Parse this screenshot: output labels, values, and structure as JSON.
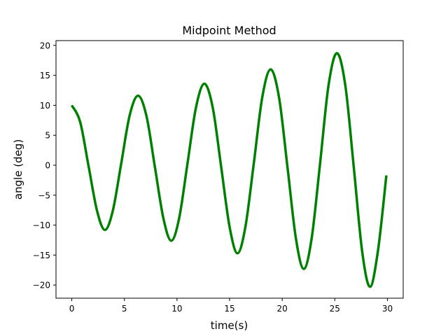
{
  "chart_data": {
    "type": "line",
    "title": "Midpoint Method",
    "xlabel": "time(s)",
    "ylabel": "angle (deg)",
    "xlim": [
      -1.5,
      31.5
    ],
    "ylim": [
      -22.2,
      20.8
    ],
    "xticks": [
      0,
      5,
      10,
      15,
      20,
      25,
      30
    ],
    "yticks": [
      -20,
      -15,
      -10,
      -5,
      0,
      5,
      10,
      15,
      20
    ],
    "xtick_labels": [
      "0",
      "5",
      "10",
      "15",
      "20",
      "25",
      "30"
    ],
    "ytick_labels": [
      "−20",
      "−15",
      "−10",
      "−5",
      "0",
      "5",
      "10",
      "15",
      "20"
    ],
    "grid": false,
    "series": [
      {
        "color": "#008000",
        "line_width": "thick",
        "x": [
          0,
          0.8,
          1.6,
          2.4,
          3.15,
          3.9,
          4.7,
          5.5,
          6.3,
          7.1,
          7.9,
          8.7,
          9.45,
          10.2,
          11.0,
          11.8,
          12.6,
          13.4,
          14.2,
          15.0,
          15.75,
          16.5,
          17.3,
          18.1,
          18.9,
          19.7,
          20.5,
          21.3,
          22.05,
          22.8,
          23.6,
          24.4,
          25.2,
          26.0,
          26.8,
          27.6,
          28.35,
          29.1,
          29.9
        ],
        "y": [
          10.0,
          7.2,
          -0.2,
          -7.6,
          -10.8,
          -7.6,
          0.3,
          8.3,
          11.6,
          8.2,
          -0.3,
          -8.8,
          -12.6,
          -8.9,
          0.3,
          9.6,
          13.6,
          9.6,
          -0.3,
          -10.3,
          -14.7,
          -10.3,
          0.3,
          11.3,
          16.0,
          11.3,
          -0.3,
          -12.2,
          -17.3,
          -12.2,
          0.3,
          13.3,
          18.7,
          13.3,
          -0.3,
          -14.4,
          -20.3,
          -14.3,
          -1.7
        ]
      }
    ]
  }
}
